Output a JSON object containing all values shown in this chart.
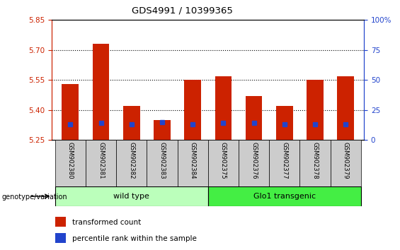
{
  "title": "GDS4991 / 10399365",
  "samples": [
    "GSM902380",
    "GSM902381",
    "GSM902382",
    "GSM902383",
    "GSM902384",
    "GSM902375",
    "GSM902376",
    "GSM902377",
    "GSM902378",
    "GSM902379"
  ],
  "transformed_count": [
    5.53,
    5.73,
    5.42,
    5.35,
    5.55,
    5.57,
    5.47,
    5.42,
    5.55,
    5.57
  ],
  "percentile_rank": [
    13,
    14,
    13,
    15,
    13,
    14,
    14,
    13,
    13,
    13
  ],
  "ylim_left": [
    5.25,
    5.85
  ],
  "ylim_right": [
    0,
    100
  ],
  "yticks_left": [
    5.25,
    5.4,
    5.55,
    5.7,
    5.85
  ],
  "yticks_right": [
    0,
    25,
    50,
    75,
    100
  ],
  "bar_color": "#cc2200",
  "marker_color": "#2244cc",
  "grid_color": "#000000",
  "axis_color_left": "#cc2200",
  "axis_color_right": "#2244cc",
  "groups": [
    {
      "label": "wild type",
      "start": 0,
      "end": 5,
      "color": "#bbffbb"
    },
    {
      "label": "Glo1 transgenic",
      "start": 5,
      "end": 10,
      "color": "#44ee44"
    }
  ],
  "legend_items": [
    {
      "color": "#cc2200",
      "label": "transformed count"
    },
    {
      "color": "#2244cc",
      "label": "percentile rank within the sample"
    }
  ],
  "genotype_label": "genotype/variation",
  "bar_width": 0.55,
  "ybase": 5.25
}
